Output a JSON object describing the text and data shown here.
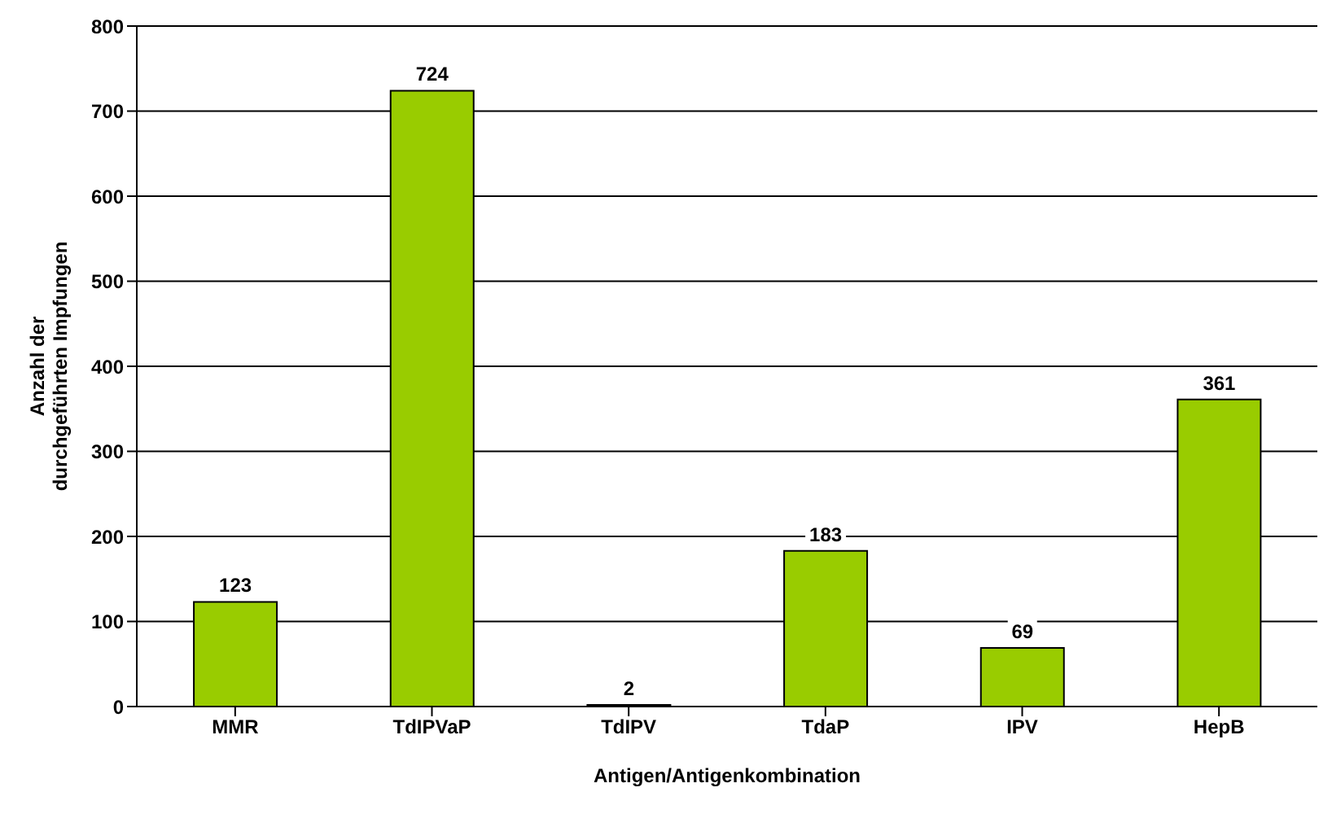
{
  "chart_data": {
    "type": "bar",
    "xlabel": "Antigen/Antigenkombination",
    "ylabel": "Anzahl der\ndurchgeführten Impfungen",
    "categories": [
      "MMR",
      "TdIPVaP",
      "TdIPV",
      "TdaP",
      "IPV",
      "HepB"
    ],
    "values": [
      123,
      724,
      2,
      183,
      69,
      361
    ],
    "color": "#99cc00",
    "ylim": [
      0,
      800
    ],
    "yticks": [
      0,
      100,
      200,
      300,
      400,
      500,
      600,
      700,
      800
    ],
    "grid": "y",
    "data_labels": true
  }
}
